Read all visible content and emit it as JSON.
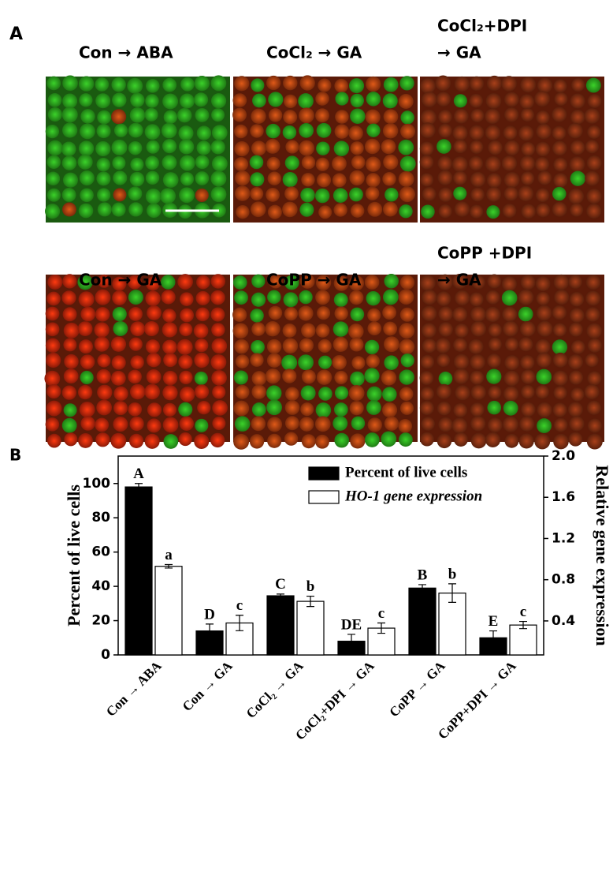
{
  "panels": {
    "a_label": "A",
    "b_label": "B"
  },
  "images": [
    {
      "label": [
        "Con → ABA"
      ],
      "tone": "green"
    },
    {
      "label": [
        "CoCl₂ → GA"
      ],
      "tone": "mixed"
    },
    {
      "label": [
        "CoCl₂+DPI",
        "→ GA"
      ],
      "tone": "dark"
    },
    {
      "label": [
        "Con → GA"
      ],
      "tone": "red"
    },
    {
      "label": [
        "CoPP → GA"
      ],
      "tone": "mixed"
    },
    {
      "label": [
        "CoPP +DPI",
        "→ GA"
      ],
      "tone": "dark"
    }
  ],
  "chart_data": {
    "type": "bar",
    "categories": [
      "Con → ABA",
      "Con → GA",
      "CoCl₂ → GA",
      "CoCl₂+DPI → GA",
      "CoPP → GA",
      "CoPP+DPI → GA"
    ],
    "ylabel": "Percent of live cells",
    "y2label": "Relative  gene expression",
    "ylim": [
      0,
      116
    ],
    "yticks": [
      0,
      20,
      40,
      60,
      80,
      100
    ],
    "y2lim": [
      0.07,
      2.0
    ],
    "y2ticks": [
      0.4,
      0.8,
      1.2,
      1.6,
      {
        "value": 2,
        "label": "2.0"
      }
    ],
    "legend": "top-right",
    "series": [
      {
        "name": "Percent of live cells",
        "color": "#000000",
        "values": [
          98,
          14,
          34.5,
          8,
          39,
          10
        ],
        "errors": [
          2,
          4,
          1,
          4,
          2,
          4
        ],
        "letters": [
          "A",
          "D",
          "C",
          "DE",
          "B",
          "E"
        ]
      },
      {
        "name": "HO-1 gene expression",
        "color": "#ffffff",
        "axis": "y2",
        "values": [
          0.93,
          0.38,
          0.59,
          0.33,
          0.67,
          0.36
        ],
        "errors": [
          0.017,
          0.075,
          0.05,
          0.05,
          0.09,
          0.035
        ],
        "letters": [
          "a",
          "c",
          "b",
          "c",
          "b",
          "c"
        ]
      }
    ]
  }
}
